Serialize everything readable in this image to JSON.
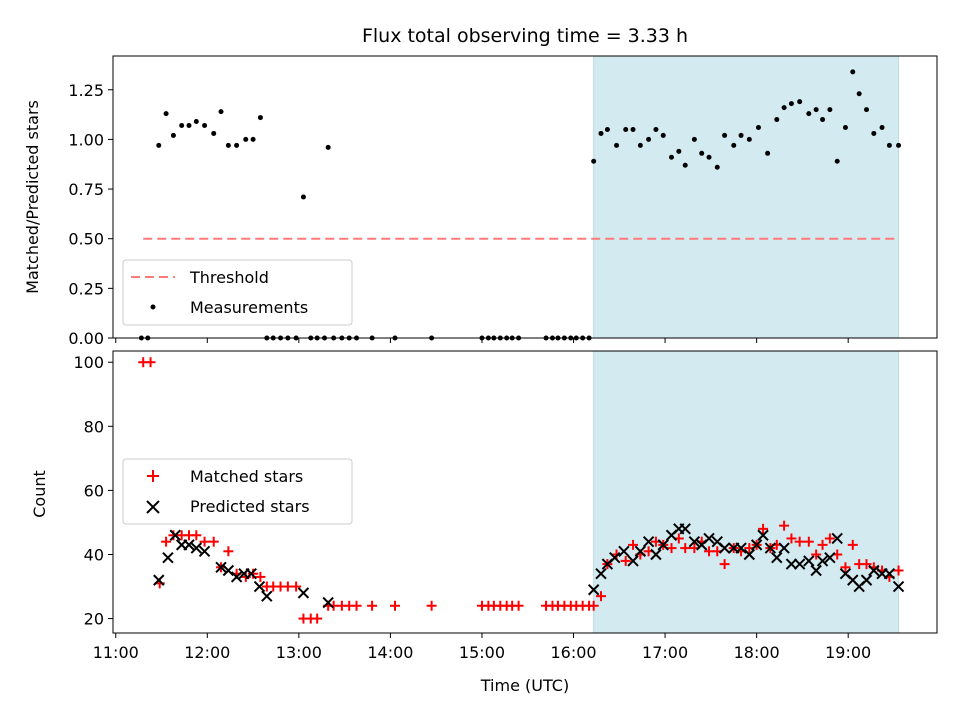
{
  "chart_data": {
    "type": "scatter",
    "title": "Flux total observing time = 3.33 h",
    "xlabel": "Time (UTC)",
    "x_ticks": [
      "11:00",
      "12:00",
      "13:00",
      "14:00",
      "15:00",
      "16:00",
      "17:00",
      "18:00",
      "19:00"
    ],
    "x_tick_hours": [
      11,
      12,
      13,
      14,
      15,
      16,
      17,
      18,
      19
    ],
    "xlim_hours": [
      10.97,
      19.97
    ],
    "shaded_region_hours": [
      16.22,
      19.55
    ],
    "shade_color": "#d3eaf1",
    "top": {
      "ylabel": "Matched/Predicted stars",
      "ylim": [
        0,
        1.42
      ],
      "y_ticks": [
        "0.00",
        "0.25",
        "0.50",
        "0.75",
        "1.00",
        "1.25"
      ],
      "y_tick_values": [
        0,
        0.25,
        0.5,
        0.75,
        1.0,
        1.25
      ],
      "threshold": {
        "name": "Threshold",
        "value": 0.5,
        "x_range_hours": [
          11.3,
          19.55
        ],
        "color": "#ff7b7b"
      },
      "measurements": {
        "name": "Measurements",
        "color": "#000000",
        "x_hours": [
          11.28,
          11.35,
          11.47,
          11.55,
          11.63,
          11.72,
          11.8,
          11.88,
          11.97,
          12.07,
          12.15,
          12.23,
          12.32,
          12.42,
          12.5,
          12.58,
          12.65,
          12.72,
          12.8,
          12.88,
          12.97,
          13.05,
          13.13,
          13.2,
          13.28,
          13.32,
          13.38,
          13.47,
          13.55,
          13.63,
          13.8,
          14.05,
          14.45,
          15.0,
          15.07,
          15.13,
          15.2,
          15.27,
          15.33,
          15.4,
          15.7,
          15.77,
          15.83,
          15.9,
          15.97,
          16.03,
          16.1,
          16.17,
          16.22,
          16.3,
          16.37,
          16.47,
          16.57,
          16.65,
          16.73,
          16.82,
          16.9,
          16.98,
          17.07,
          17.15,
          17.22,
          17.32,
          17.4,
          17.48,
          17.57,
          17.65,
          17.75,
          17.83,
          17.92,
          18.02,
          18.12,
          18.22,
          18.3,
          18.38,
          18.47,
          18.57,
          18.65,
          18.72,
          18.8,
          18.88,
          18.97,
          19.05,
          19.12,
          19.2,
          19.28,
          19.37,
          19.45,
          19.55
        ],
        "y": [
          0,
          0,
          0.97,
          1.13,
          1.02,
          1.07,
          1.07,
          1.09,
          1.07,
          1.03,
          1.14,
          0.97,
          0.97,
          1.0,
          1.0,
          1.11,
          0,
          0,
          0,
          0,
          0,
          0.71,
          0,
          0,
          0,
          0.96,
          0,
          0,
          0,
          0,
          0,
          0,
          0,
          0,
          0,
          0,
          0,
          0,
          0,
          0,
          0,
          0,
          0,
          0,
          0,
          0,
          0,
          0,
          0.89,
          1.03,
          1.05,
          0.97,
          1.05,
          1.05,
          0.97,
          1.0,
          1.05,
          1.02,
          0.91,
          0.94,
          0.87,
          1.0,
          0.93,
          0.91,
          0.86,
          1.02,
          0.97,
          1.02,
          1.0,
          1.06,
          0.93,
          1.1,
          1.16,
          1.18,
          1.19,
          1.13,
          1.15,
          1.1,
          1.15,
          0.89,
          1.06,
          1.34,
          1.23,
          1.15,
          1.03,
          1.06,
          0.97,
          0.97
        ]
      }
    },
    "bottom": {
      "ylabel": "Count",
      "ylim": [
        15.5,
        103.5
      ],
      "y_ticks": [
        "20",
        "40",
        "60",
        "80",
        "100"
      ],
      "y_tick_values": [
        20,
        40,
        60,
        80,
        100
      ],
      "series": [
        {
          "name": "Matched stars",
          "marker": "+",
          "color": "#ff0000",
          "x_hours": [
            11.3,
            11.38,
            11.48,
            11.55,
            11.63,
            11.72,
            11.8,
            11.88,
            11.97,
            12.07,
            12.15,
            12.23,
            12.32,
            12.42,
            12.5,
            12.58,
            12.65,
            12.72,
            12.8,
            12.88,
            12.97,
            13.05,
            13.13,
            13.2,
            13.32,
            13.38,
            13.47,
            13.55,
            13.63,
            13.8,
            14.05,
            14.45,
            15.0,
            15.07,
            15.13,
            15.2,
            15.27,
            15.33,
            15.4,
            15.7,
            15.77,
            15.83,
            15.9,
            15.97,
            16.03,
            16.1,
            16.17,
            16.22,
            16.3,
            16.37,
            16.47,
            16.57,
            16.65,
            16.73,
            16.82,
            16.9,
            16.98,
            17.07,
            17.15,
            17.22,
            17.32,
            17.4,
            17.48,
            17.57,
            17.65,
            17.75,
            17.83,
            17.92,
            18.0,
            18.07,
            18.15,
            18.22,
            18.3,
            18.38,
            18.47,
            18.57,
            18.65,
            18.72,
            18.8,
            18.88,
            18.97,
            19.05,
            19.12,
            19.2,
            19.28,
            19.37,
            19.45,
            19.55
          ],
          "y": [
            100,
            100,
            31,
            44,
            46,
            46,
            46,
            46,
            44,
            44,
            36,
            41,
            34,
            33,
            34,
            33,
            30,
            30,
            30,
            30,
            30,
            20,
            20,
            20,
            24,
            24,
            24,
            24,
            24,
            24,
            24,
            24,
            24,
            24,
            24,
            24,
            24,
            24,
            24,
            24,
            24,
            24,
            24,
            24,
            24,
            24,
            24,
            24,
            27,
            37,
            40,
            38,
            43,
            40,
            41,
            44,
            43,
            42,
            45,
            42,
            42,
            44,
            41,
            41,
            37,
            42,
            41,
            42,
            43,
            48,
            42,
            43,
            49,
            45,
            44,
            44,
            40,
            43,
            45,
            40,
            36,
            43,
            37,
            37,
            36,
            35,
            33,
            35
          ]
        },
        {
          "name": "Predicted stars",
          "marker": "x",
          "color": "#000000",
          "x_hours": [
            11.47,
            11.57,
            11.65,
            11.72,
            11.8,
            11.88,
            11.97,
            12.15,
            12.23,
            12.32,
            12.4,
            12.48,
            12.57,
            12.65,
            13.05,
            13.32,
            16.22,
            16.3,
            16.37,
            16.45,
            16.55,
            16.65,
            16.73,
            16.82,
            16.9,
            16.98,
            17.07,
            17.15,
            17.22,
            17.32,
            17.4,
            17.48,
            17.57,
            17.65,
            17.75,
            17.83,
            17.92,
            18.0,
            18.07,
            18.15,
            18.22,
            18.3,
            18.38,
            18.47,
            18.57,
            18.65,
            18.72,
            18.8,
            18.88,
            18.97,
            19.05,
            19.12,
            19.2,
            19.28,
            19.37,
            19.45,
            19.55
          ],
          "y": [
            32,
            39,
            46,
            43,
            43,
            42,
            41,
            36,
            35,
            33,
            34,
            34,
            30,
            27,
            28,
            25,
            29,
            34,
            37,
            39,
            41,
            38,
            41,
            44,
            40,
            43,
            46,
            48,
            48,
            44,
            43,
            45,
            44,
            42,
            42,
            42,
            40,
            43,
            46,
            42,
            39,
            42,
            37,
            37,
            38,
            35,
            38,
            39,
            45,
            34,
            32,
            30,
            32,
            35,
            34,
            34,
            30
          ]
        }
      ]
    }
  }
}
